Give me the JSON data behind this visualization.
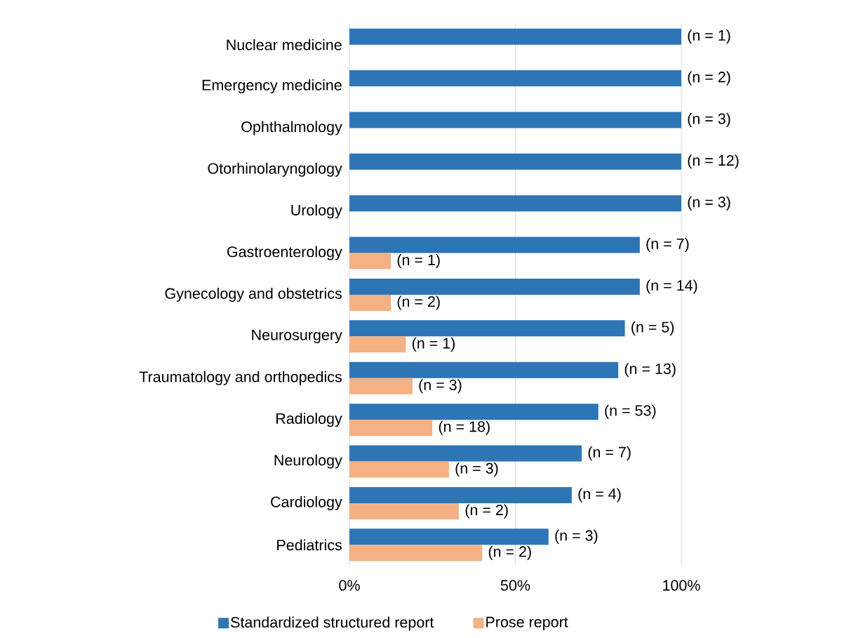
{
  "chart_data": {
    "type": "bar",
    "orientation": "horizontal",
    "categories": [
      "Nuclear medicine",
      "Emergency medicine",
      "Ophthalmology",
      "Otorhinolaryngology",
      "Urology",
      "Gastroenterology",
      "Gynecology and obstetrics",
      "Neurosurgery",
      "Traumatology and orthopedics",
      "Radiology",
      "Neurology",
      "Cardiology",
      "Pediatrics"
    ],
    "series": [
      {
        "name": "Standardized structured report",
        "color": "#2e75b6",
        "values": [
          100,
          100,
          100,
          100,
          100,
          87.5,
          87.5,
          83,
          81,
          75,
          70,
          67,
          60
        ]
      },
      {
        "name": "Prose report",
        "color": "#f4b183",
        "values": [
          null,
          null,
          null,
          null,
          null,
          12.5,
          12.5,
          17,
          19,
          25,
          30,
          33,
          40
        ]
      }
    ],
    "annotations": [
      {
        "text": "(n = 1)",
        "x": 100,
        "y": "Nuclear medicine"
      },
      {
        "text": "(n = 2)",
        "x": 100,
        "y": "Emergency medicine"
      },
      {
        "text": "(n = 3)",
        "x": 100,
        "y": "Ophthalmology"
      },
      {
        "text": "(n = 12)",
        "x": 100,
        "y": "Otorhinolaryngology"
      },
      {
        "text": "(n = 3)",
        "x": 100,
        "y": "Urology"
      },
      {
        "text": "(n = 7)",
        "x": 87.5,
        "y": "Gastroenterology"
      },
      {
        "text": "(n = 1)",
        "x": 12.5,
        "y": "Gastroenterology"
      },
      {
        "text": "(n = 14)",
        "x": 87.5,
        "y": "Gynecology and obstetrics"
      },
      {
        "text": "(n = 2)",
        "x": 12.5,
        "y": "Gynecology and obstetrics"
      },
      {
        "text": "(n = 5)",
        "x": 83,
        "y": "Neurosurgery"
      },
      {
        "text": "(n = 1)",
        "x": 17,
        "y": "Neurosurgery"
      },
      {
        "text": "(n = 13)",
        "x": 81,
        "y": "Traumatology and orthopedics"
      },
      {
        "text": "(n = 3)",
        "x": 19,
        "y": "Traumatology and orthopedics"
      },
      {
        "text": "(n = 53)",
        "x": 75,
        "y": "Radiology"
      },
      {
        "text": "(n = 18)",
        "x": 25,
        "y": "Radiology"
      },
      {
        "text": "(n = 7)",
        "x": 70,
        "y": "Neurology"
      },
      {
        "text": "(n = 3)",
        "x": 30,
        "y": "Neurology"
      },
      {
        "text": "(n = 4)",
        "x": 67,
        "y": "Cardiology"
      },
      {
        "text": "(n = 2)",
        "x": 33,
        "y": "Cardiology"
      },
      {
        "text": "(n = 3)",
        "x": 60,
        "y": "Pediatrics"
      },
      {
        "text": "(n = 2)",
        "x": 40,
        "y": "Pediatrics"
      }
    ],
    "xlim": [
      0,
      100
    ],
    "xticks": [
      {
        "value": 0,
        "label": "0%"
      },
      {
        "value": 50,
        "label": "50%"
      },
      {
        "value": 100,
        "label": "100%"
      }
    ],
    "grid": "x",
    "legend": "bottom"
  }
}
